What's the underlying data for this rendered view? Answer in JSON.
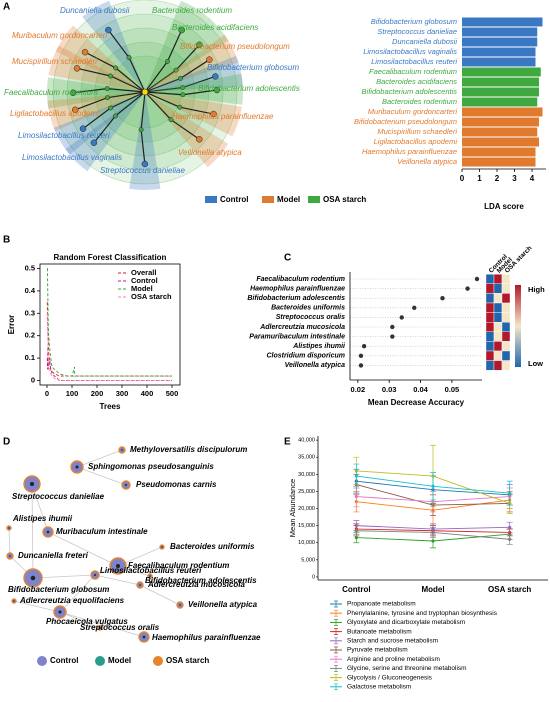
{
  "chart_data": [
    {
      "panel": "A",
      "type": "cladogram",
      "labels": [
        {
          "text": "Duncaniella dubosii",
          "group": "Control"
        },
        {
          "text": "Bacteroides rodentium",
          "group": "OSA starch"
        },
        {
          "text": "Muribaculum gordoncarteri",
          "group": "Model"
        },
        {
          "text": "Bacteroides acidifaciens",
          "group": "OSA starch"
        },
        {
          "text": "Bifidobacterium pseudolongum",
          "group": "Model"
        },
        {
          "text": "Mucispirillum schaedleri",
          "group": "Model"
        },
        {
          "text": "Bifidobacterium globosum",
          "group": "Control"
        },
        {
          "text": "Bifidobacterium adolescentis",
          "group": "OSA starch"
        },
        {
          "text": "Faecalibaculum rodentium",
          "group": "OSA starch"
        },
        {
          "text": "Ligilactobacillus apodemi",
          "group": "Model"
        },
        {
          "text": "Haemophilus parainfluenzae",
          "group": "Model"
        },
        {
          "text": "Limosilactobacillus reuteri",
          "group": "Control"
        },
        {
          "text": "Limosilactobacillus vaginalis",
          "group": "Control"
        },
        {
          "text": "Veillonella atypica",
          "group": "Model"
        },
        {
          "text": "Streptococcus danieliae",
          "group": "Control"
        }
      ],
      "legend": [
        {
          "name": "Control",
          "color": "#3b78c3"
        },
        {
          "name": "Model",
          "color": "#e07a2e"
        },
        {
          "name": "OSA starch",
          "color": "#3fa93f"
        }
      ]
    },
    {
      "type": "hbar",
      "xlabel": "LDA score",
      "categories": [
        "Bifidobacterium globosum",
        "Streptococcus danieliae",
        "Duncaniella dubosii",
        "Limosilactobacillus vaginalis",
        "Limosilactobacillus reuteri",
        "Faecalibaculum rodentium",
        "Bacteroides acidifaciens",
        "Bifidobacterium adolescentis",
        "Bacteroides rodentium",
        "Muribaculum gordoncarteri",
        "Bifidobacterium pseudolongum",
        "Mucispirillum schaedleri",
        "Ligilactobacillus apodemi",
        "Haemophilus parainfluenzae",
        "Veillonella atypica"
      ],
      "values": [
        4.6,
        4.3,
        4.3,
        4.2,
        4.2,
        4.5,
        4.4,
        4.4,
        4.3,
        4.6,
        4.4,
        4.3,
        4.4,
        4.2,
        4.2
      ],
      "colors": [
        "#3b78c3",
        "#3b78c3",
        "#3b78c3",
        "#3b78c3",
        "#3b78c3",
        "#3fa93f",
        "#3fa93f",
        "#3fa93f",
        "#3fa93f",
        "#e07a2e",
        "#e07a2e",
        "#e07a2e",
        "#e07a2e",
        "#e07a2e",
        "#e07a2e"
      ],
      "xlim": [
        0,
        4.8
      ],
      "xticks": [
        0,
        1,
        2,
        3,
        4
      ]
    },
    {
      "panel": "B",
      "type": "line",
      "title": "Random Forest Classification",
      "xlabel": "Trees",
      "ylabel": "Error",
      "line_style": "dashed",
      "x": [
        1,
        2,
        3,
        4,
        5,
        7,
        10,
        15,
        20,
        30,
        50,
        80,
        100,
        110,
        111,
        150,
        200,
        300,
        400,
        500
      ],
      "series": [
        {
          "name": "Overall",
          "color": "#e31a1c",
          "values": [
            0.35,
            0.3,
            0.25,
            0.2,
            0.18,
            0.12,
            0.08,
            0.05,
            0.04,
            0.03,
            0.02,
            0.02,
            0.02,
            0.02,
            0.02,
            0.02,
            0.02,
            0.02,
            0.02,
            0.02
          ]
        },
        {
          "name": "Control",
          "color": "#c51b7d",
          "values": [
            0.1,
            0.05,
            0.15,
            0.1,
            0.05,
            0.08,
            0.1,
            0.05,
            0.03,
            0.02,
            0,
            0,
            0,
            0,
            0,
            0,
            0,
            0,
            0,
            0
          ]
        },
        {
          "name": "Model",
          "color": "#33a02c",
          "values": [
            0.5,
            0.5,
            0.4,
            0.33,
            0.25,
            0.2,
            0.15,
            0.1,
            0.06,
            0.05,
            0.03,
            0.02,
            0.02,
            0.06,
            0.02,
            0.02,
            0.02,
            0.02,
            0.02,
            0.02
          ]
        },
        {
          "name": "OSA starch",
          "color": "#f781bf",
          "values": [
            0.3,
            0.25,
            0.2,
            0.15,
            0.1,
            0.08,
            0.05,
            0.03,
            0.02,
            0.01,
            0,
            0,
            0,
            0,
            0,
            0,
            0,
            0,
            0,
            0
          ]
        }
      ],
      "xlim": [
        -28,
        532
      ],
      "ylim": [
        -0.02,
        0.52
      ],
      "xticks": [
        0,
        100,
        200,
        300,
        400,
        500
      ],
      "yticks": [
        0,
        0.1,
        0.2,
        0.3,
        0.4,
        0.5
      ]
    },
    {
      "panel": "C",
      "type": "dot",
      "xlabel": "Mean Decrease Accuracy",
      "categories": [
        "Faecalibaculum rodentium",
        "Haemophilus parainfluenzae",
        "Bifidobacterium adolescentis",
        "Bacteroides uniformis",
        "Streptococcus oralis",
        "Adlercreutzia mucosicola",
        "Paramuribaculum intestinale",
        "Alistipes ihumii",
        "Clostridium disporicum",
        "Veillonella atypica"
      ],
      "values": [
        0.058,
        0.055,
        0.047,
        0.038,
        0.034,
        0.031,
        0.031,
        0.022,
        0.021,
        0.021
      ],
      "xlim": [
        0.0175,
        0.0596
      ],
      "xticks": [
        0.02,
        0.03,
        0.04,
        0.05
      ],
      "heatmap": {
        "columns": [
          "Control",
          "Model",
          "OSA starch"
        ],
        "colors": [
          [
            "#2166ac",
            "#b2182b",
            "#f5e6c8"
          ],
          [
            "#b2182b",
            "#2166ac",
            "#f5e6c8"
          ],
          [
            "#2166ac",
            "#f5e6c8",
            "#b2182b"
          ],
          [
            "#b2182b",
            "#2166ac",
            "#f5e6c8"
          ],
          [
            "#b2182b",
            "#2166ac",
            "#f5e6c8"
          ],
          [
            "#b2182b",
            "#f5e6c8",
            "#2166ac"
          ],
          [
            "#2166ac",
            "#f5e6c8",
            "#b2182b"
          ],
          [
            "#2166ac",
            "#b2182b",
            "#f5e6c8"
          ],
          [
            "#b2182b",
            "#f5e6c8",
            "#2166ac"
          ],
          [
            "#2166ac",
            "#b2182b",
            "#f5e6c8"
          ]
        ]
      },
      "colorbar": {
        "high": "High",
        "low": "Low",
        "colors": [
          "#b2182b",
          "#f5e6c8",
          "#2166ac"
        ]
      }
    },
    {
      "panel": "D",
      "type": "network",
      "nodes": [
        "Methyloversatilis discipulorum",
        "Sphingomonas pseudosanguinis",
        "Streptococcus danieliae",
        "Pseudomonas carnis",
        "Alistipes ihumii",
        "Muribaculum intestinale",
        "Bacteroides uniformis",
        "Duncaniella freteri",
        "Faecalibaculum rodentium",
        "Bifidobacterium adolescentis",
        "Bifidobacterium globosum",
        "Limosilactobacillus reuteri",
        "Adlercreutzia mucosicola",
        "Adlercreutzia equolifaciens",
        "Veillonella atypica",
        "Phocaeicola vulgatus",
        "Streptococcus oralis",
        "Haemophilus parainfluenzae"
      ],
      "legend": [
        {
          "name": "Control",
          "color": "#7f83c9"
        },
        {
          "name": "Model",
          "color": "#2b9c8c"
        },
        {
          "name": "OSA starch",
          "color": "#e5862f"
        }
      ]
    },
    {
      "panel": "E",
      "type": "errorline",
      "ylabel": "Mean Abundance",
      "categories": [
        "Control",
        "Model",
        "OSA starch"
      ],
      "series": [
        {
          "name": "Propanoate metabolism",
          "color": "#1f77b4",
          "values": [
            28000,
            25500,
            24000
          ],
          "errors": [
            3500,
            4000,
            3000
          ]
        },
        {
          "name": "Phenylalanine, tyrosine and tryptophan biosynthesis",
          "color": "#ff7f0e",
          "values": [
            22000,
            19500,
            22500
          ],
          "errors": [
            3000,
            4500,
            2500
          ]
        },
        {
          "name": "Glyoxylate and dicarboxylate metabolism",
          "color": "#2ca02c",
          "values": [
            11500,
            10500,
            12500
          ],
          "errors": [
            1500,
            2000,
            1500
          ]
        },
        {
          "name": "Butanoate metabolism",
          "color": "#d62728",
          "values": [
            14000,
            13500,
            13000
          ],
          "errors": [
            1500,
            1500,
            1000
          ]
        },
        {
          "name": "Starch and sucrose metabolism",
          "color": "#9467bd",
          "values": [
            15000,
            14000,
            14500
          ],
          "errors": [
            1500,
            1500,
            1500
          ]
        },
        {
          "name": "Pyruvate metabolism",
          "color": "#8c564b",
          "values": [
            27000,
            21000,
            21500
          ],
          "errors": [
            3000,
            3000,
            2500
          ]
        },
        {
          "name": "Arginine and proline metabolism",
          "color": "#e377c2",
          "values": [
            23500,
            22000,
            23500
          ],
          "errors": [
            3000,
            3000,
            2500
          ]
        },
        {
          "name": "Glycine, serine and threonine metabolism",
          "color": "#7f7f7f",
          "values": [
            13500,
            13000,
            11000
          ],
          "errors": [
            1500,
            1500,
            1500
          ]
        },
        {
          "name": "Glycolysis / Gluconeogenesis",
          "color": "#bcbd22",
          "values": [
            31000,
            29500,
            21500
          ],
          "errors": [
            4000,
            9000,
            3000
          ]
        },
        {
          "name": "Galactose metabolism",
          "color": "#17becf",
          "values": [
            29500,
            26500,
            24500
          ],
          "errors": [
            3500,
            4000,
            3500
          ]
        }
      ],
      "ylim": [
        -900,
        41200
      ],
      "yticks": [
        0,
        {
          "value": 5000,
          "label": "5,000"
        },
        {
          "value": 10000,
          "label": "10,000"
        },
        {
          "value": 15000,
          "label": "15,000"
        },
        {
          "value": 20000,
          "label": "20,000"
        },
        {
          "value": 25000,
          "label": "25,000"
        },
        {
          "value": 30000,
          "label": "30,000"
        },
        {
          "value": 35000,
          "label": "35,000"
        },
        {
          "value": 40000,
          "label": "40,000"
        }
      ]
    }
  ]
}
